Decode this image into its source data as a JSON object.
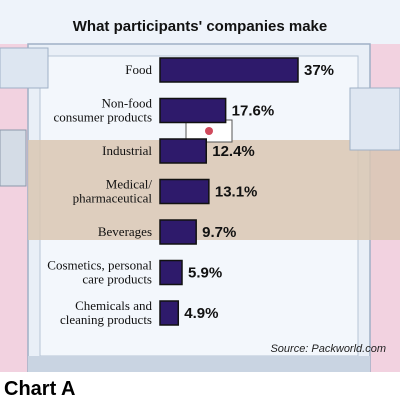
{
  "chart_data": {
    "type": "bar",
    "orientation": "horizontal",
    "title": "What participants' companies make",
    "categories": [
      [
        "Food"
      ],
      [
        "Non-food",
        "consumer products"
      ],
      [
        "Industrial"
      ],
      [
        "Medical/",
        "pharmaceutical"
      ],
      [
        "Beverages"
      ],
      [
        "Cosmetics, personal",
        "care products"
      ],
      [
        "Chemicals and",
        "cleaning products"
      ]
    ],
    "values": [
      37,
      17.6,
      12.4,
      13.1,
      9.7,
      5.9,
      4.9
    ],
    "value_labels": [
      "37%",
      "17.6%",
      "12.4%",
      "13.1%",
      "9.7%",
      "5.9%",
      "4.9%"
    ],
    "xlim": [
      0,
      37
    ],
    "grid": false,
    "source": "Source: Packworld.com",
    "caption": "Chart A"
  },
  "colors": {
    "bar": "#2e1a6b",
    "sky": "#f2d2e0",
    "machine": "#e9eff7",
    "machine_edge": "#9fb0c6",
    "conveyor": "#d9c7b3"
  }
}
